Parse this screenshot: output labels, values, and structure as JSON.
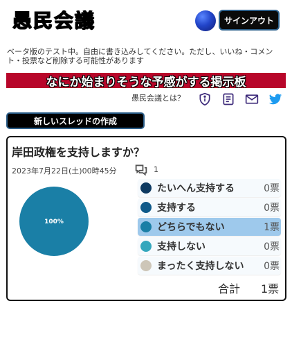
{
  "header": {
    "logo": "愚民会議",
    "signout_label": "サインアウト"
  },
  "notice": "ベータ版のテスト中。自由に書き込みしてください。ただし、いいね・コメント・投票など削除する可能性があります",
  "banner": "なにか始まりそうな予感がする掲示板",
  "nav": {
    "about_label": "愚民会議とは？",
    "icons": [
      "info-shield-icon",
      "document-icon",
      "mail-icon",
      "twitter-icon"
    ]
  },
  "new_thread_label": "新しいスレッドの作成",
  "thread": {
    "title": "岸田政権を支持しますか？",
    "date": "2023年7月22日(土)00時45分",
    "comment_count": "1",
    "pie_label": "100%",
    "options": [
      {
        "label": "たいへん支持する",
        "votes": "0票",
        "count": 0,
        "color": "#0e3a61",
        "selected": false
      },
      {
        "label": "支持する",
        "votes": "0票",
        "count": 0,
        "color": "#0f5a8a",
        "selected": false
      },
      {
        "label": "どちらでもない",
        "votes": "1票",
        "count": 1,
        "color": "#1a7fa6",
        "selected": true
      },
      {
        "label": "支持しない",
        "votes": "0票",
        "count": 0,
        "color": "#34a7bd",
        "selected": false
      },
      {
        "label": "まったく支持しない",
        "votes": "0票",
        "count": 0,
        "color": "#cdc6b8",
        "selected": false
      }
    ],
    "total_label": "合計",
    "total_value": "1票"
  },
  "colors": {
    "banner_bg": "#b8062a",
    "pie_fill": "#1a7fa6",
    "icon_color": "#3d2a7a",
    "twitter_blue": "#1d9bf0"
  }
}
